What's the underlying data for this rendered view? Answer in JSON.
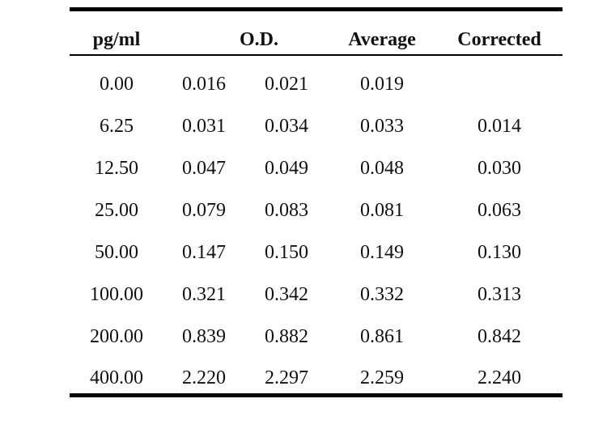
{
  "table": {
    "headers": {
      "concentration": "pg/ml",
      "od": "O.D.",
      "average": "Average",
      "corrected": "Corrected"
    },
    "rows": [
      {
        "concentration": "0.00",
        "od1": "0.016",
        "od2": "0.021",
        "average": "0.019",
        "corrected": ""
      },
      {
        "concentration": "6.25",
        "od1": "0.031",
        "od2": "0.034",
        "average": "0.033",
        "corrected": "0.014"
      },
      {
        "concentration": "12.50",
        "od1": "0.047",
        "od2": "0.049",
        "average": "0.048",
        "corrected": "0.030"
      },
      {
        "concentration": "25.00",
        "od1": "0.079",
        "od2": "0.083",
        "average": "0.081",
        "corrected": "0.063"
      },
      {
        "concentration": "50.00",
        "od1": "0.147",
        "od2": "0.150",
        "average": "0.149",
        "corrected": "0.130"
      },
      {
        "concentration": "100.00",
        "od1": "0.321",
        "od2": "0.342",
        "average": "0.332",
        "corrected": "0.313"
      },
      {
        "concentration": "200.00",
        "od1": "0.839",
        "od2": "0.882",
        "average": "0.861",
        "corrected": "0.842"
      },
      {
        "concentration": "400.00",
        "od1": "2.220",
        "od2": "2.297",
        "average": "2.259",
        "corrected": "2.240"
      }
    ]
  }
}
